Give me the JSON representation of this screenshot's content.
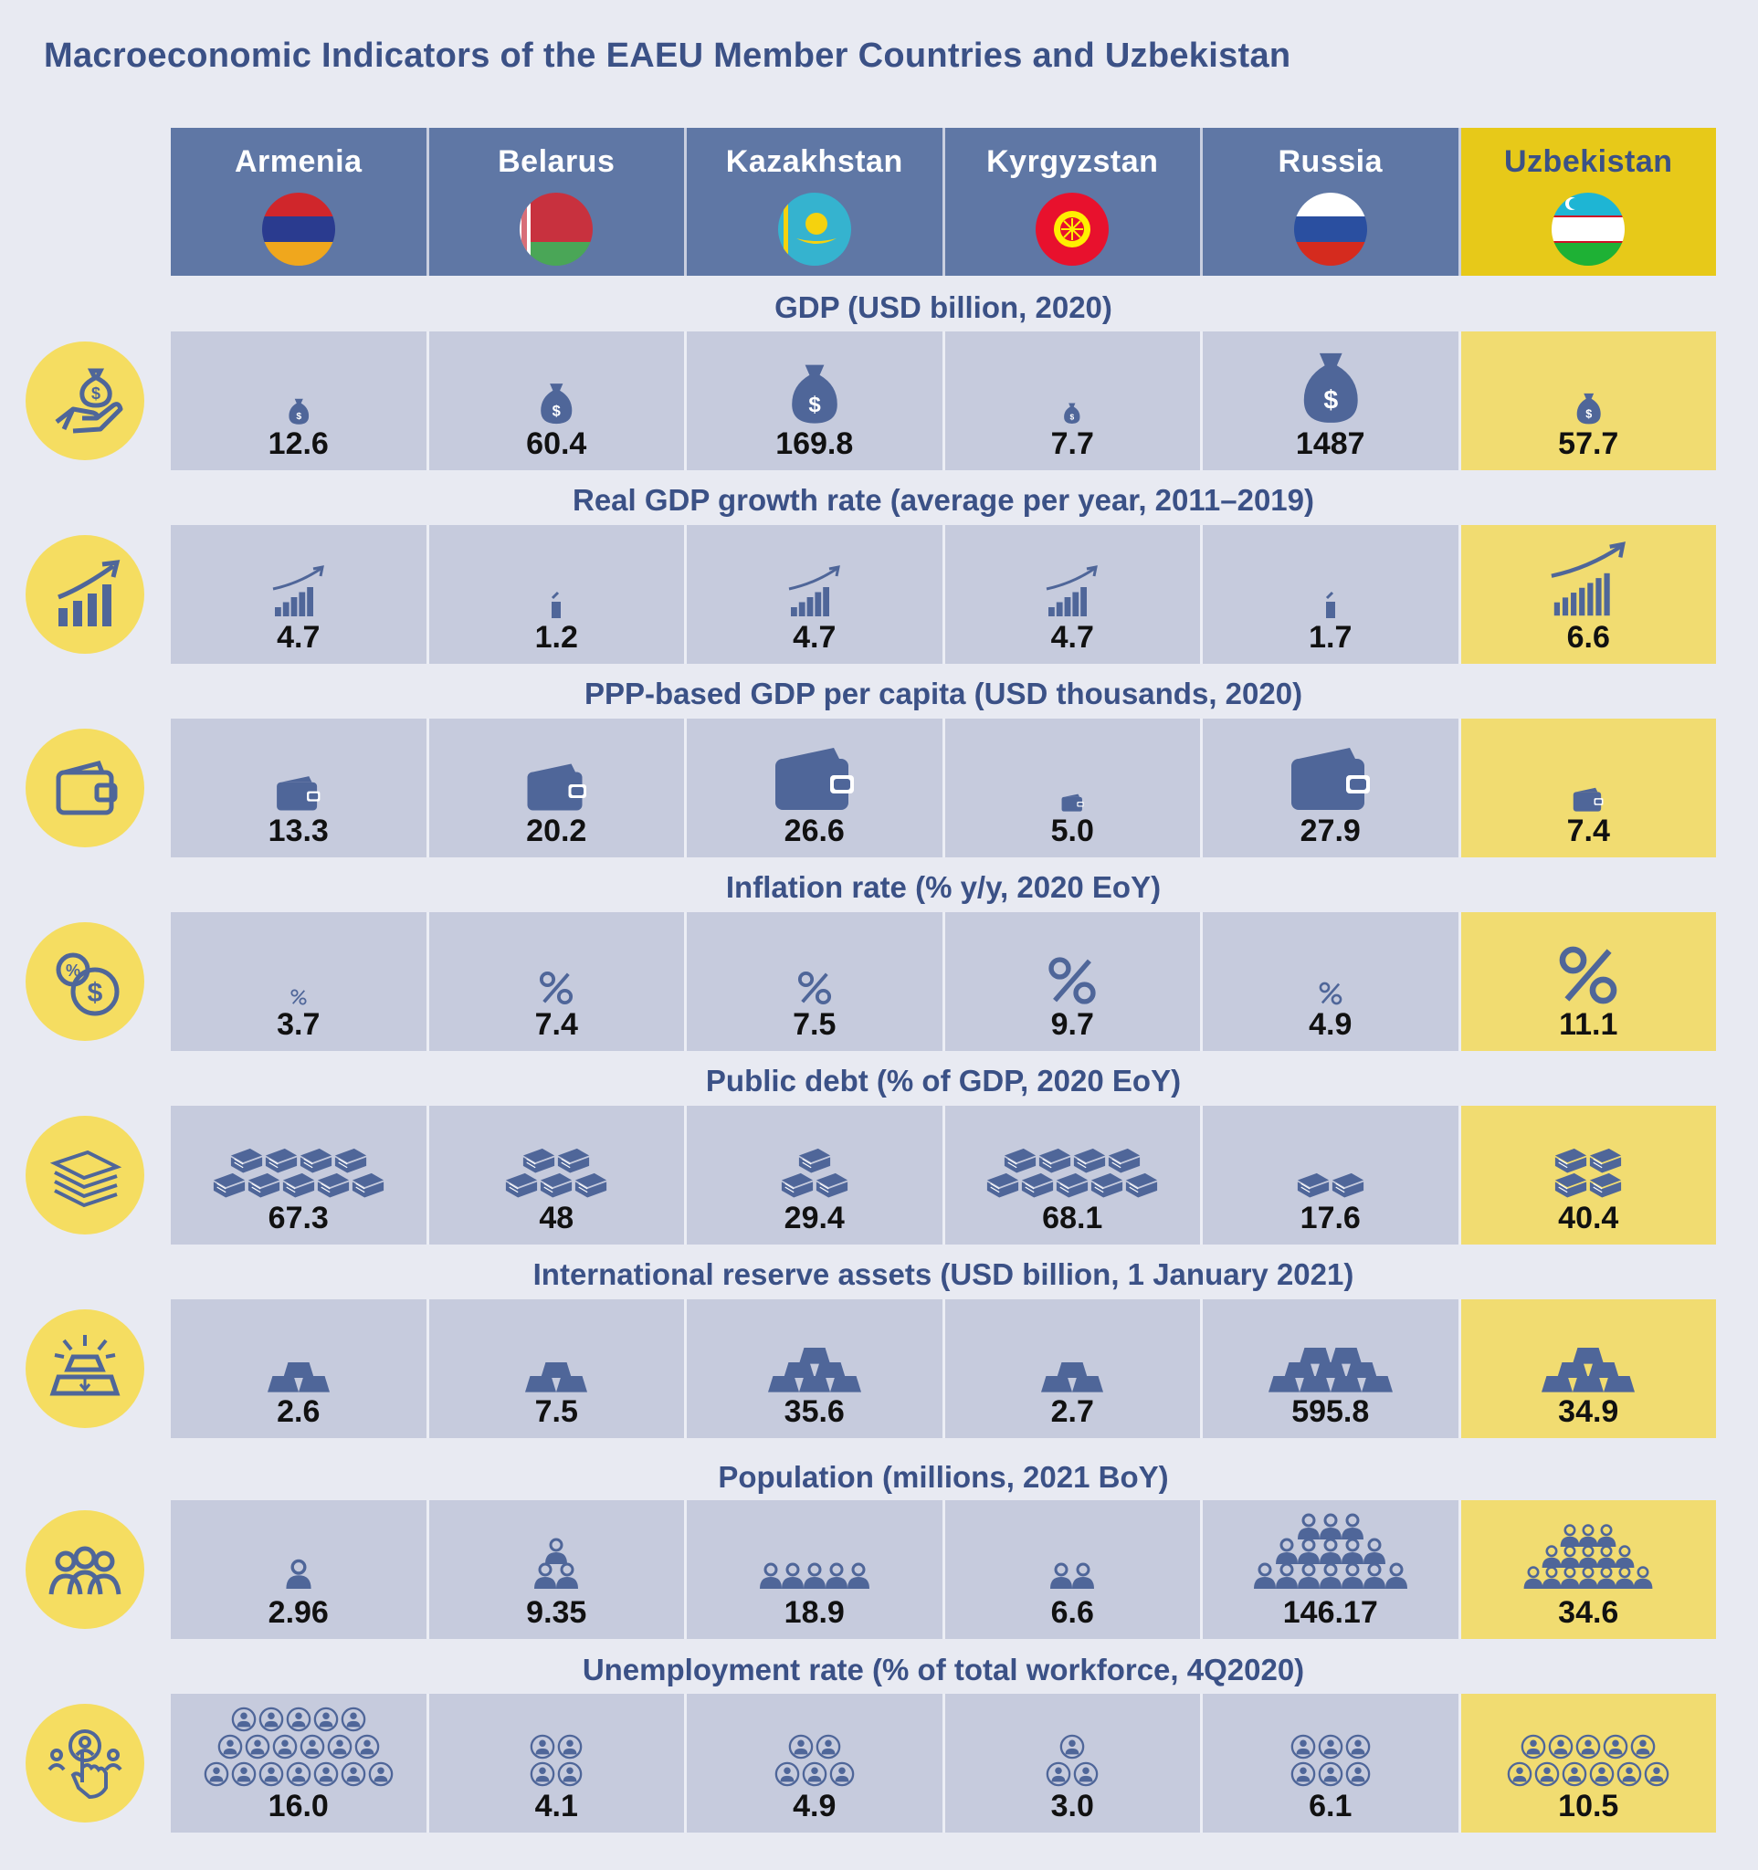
{
  "title": "Macroeconomic Indicators of the EAEU Member Countries and Uzbekistan",
  "countries": [
    {
      "name": "Armenia",
      "flag": "armenia-flag"
    },
    {
      "name": "Belarus",
      "flag": "belarus-flag"
    },
    {
      "name": "Kazakhstan",
      "flag": "kazakhstan-flag"
    },
    {
      "name": "Kyrgyzstan",
      "flag": "kyrgyzstan-flag"
    },
    {
      "name": "Russia",
      "flag": "russia-flag"
    },
    {
      "name": "Uzbekistan",
      "flag": "uzbekistan-flag"
    }
  ],
  "colors": {
    "header_blue": "#5f77a5",
    "highlight_yellow": "#e7c919",
    "cell_gray": "#c6cbdd",
    "cell_highlight": "#f1dc71",
    "pictogram": "#4f6699",
    "title_blue": "#3b5186"
  },
  "indicators": [
    {
      "title": "GDP (USD billion, 2020)",
      "icon": "hand-money-bag-icon",
      "pictogram": "money-bag-icon",
      "values": [
        "12.6",
        "60.4",
        "169.8",
        "7.7",
        "1487",
        "57.7"
      ]
    },
    {
      "title": "Real GDP growth rate (average per year, 2011–2019)",
      "icon": "growth-chart-icon",
      "pictogram": "growth-bars-icon",
      "values": [
        "4.7",
        "1.2",
        "4.7",
        "4.7",
        "1.7",
        "6.6"
      ]
    },
    {
      "title": "PPP-based GDP per capita (USD thousands, 2020)",
      "icon": "wallet-icon",
      "pictogram": "wallet-icon",
      "values": [
        "13.3",
        "20.2",
        "26.6",
        "5.0",
        "27.9",
        "7.4"
      ]
    },
    {
      "title": "Inflation rate (% y/y, 2020 EoY)",
      "icon": "percent-coin-icon",
      "pictogram": "percent-icon",
      "values": [
        "3.7",
        "7.4",
        "7.5",
        "9.7",
        "4.9",
        "11.1"
      ]
    },
    {
      "title": "Public debt (% of GDP, 2020 EoY)",
      "icon": "money-stack-icon",
      "pictogram": "banknote-bundle-icon",
      "values": [
        "67.3",
        "48",
        "29.4",
        "68.1",
        "17.6",
        "40.4"
      ]
    },
    {
      "title": "International reserve assets (USD billion, 1 January 2021)",
      "icon": "gold-bar-icon",
      "pictogram": "gold-bars-icon",
      "values": [
        "2.6",
        "7.5",
        "35.6",
        "2.7",
        "595.8",
        "34.9"
      ]
    },
    {
      "title": "Population (millions, 2021 BoY)",
      "icon": "people-icon",
      "pictogram": "person-icon",
      "values": [
        "2.96",
        "9.35",
        "18.9",
        "6.6",
        "146.17",
        "34.6"
      ]
    },
    {
      "title": "Unemployment rate (% of total workforce, 4Q2020)",
      "icon": "hand-pointer-people-icon",
      "pictogram": "person-circle-icon",
      "values": [
        "16.0",
        "4.1",
        "4.9",
        "3.0",
        "6.1",
        "10.5"
      ]
    }
  ]
}
